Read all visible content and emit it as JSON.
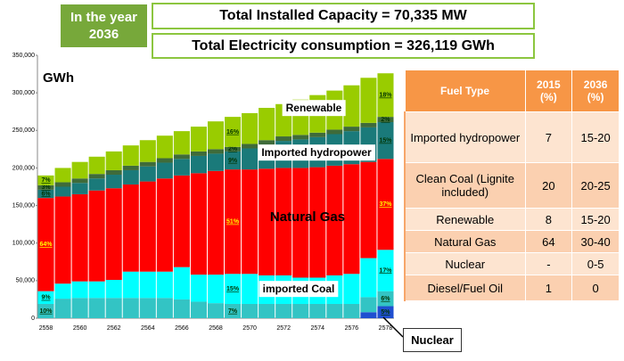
{
  "header": {
    "year_box": "In the year 2036",
    "capacity": "Total Installed Capacity = 70,335 MW",
    "consumption": "Total Electricity consumption = 326,119 GWh"
  },
  "chart_data": {
    "type": "stacked_bar",
    "unit_label": "GWh",
    "categories": [
      "2558",
      null,
      "2560",
      null,
      "2562",
      null,
      "2564",
      null,
      "2566",
      null,
      "2568",
      null,
      "2570",
      null,
      "2572",
      null,
      "2574",
      null,
      "2576",
      null,
      "2578"
    ],
    "ylim": [
      0,
      350000
    ],
    "yticks": [
      0,
      {
        "value": 50000,
        "label": "50,000"
      },
      {
        "value": 100000,
        "label": "100,000"
      },
      {
        "value": 150000,
        "label": "150,000"
      },
      {
        "value": 200000,
        "label": "200,000"
      },
      {
        "value": 250000,
        "label": "250,000"
      },
      {
        "value": 300000,
        "label": "300,000"
      },
      {
        "value": 350000,
        "label": "350,000"
      }
    ],
    "series": [
      {
        "name": "Nuclear",
        "color": "#1f4fd0",
        "values": [
          0,
          0,
          0,
          0,
          0,
          0,
          0,
          0,
          0,
          0,
          0,
          0,
          0,
          0,
          0,
          0,
          0,
          0,
          0,
          8000,
          16000
        ],
        "share_labels": [
          null,
          null,
          null,
          null,
          null,
          null,
          null,
          null,
          null,
          null,
          null,
          null,
          null,
          null,
          null,
          null,
          null,
          null,
          null,
          null,
          "5%"
        ]
      },
      {
        "color": "#33c4c4",
        "values": [
          19000,
          26000,
          27000,
          27000,
          27000,
          27000,
          27000,
          27000,
          25000,
          22000,
          20000,
          19000,
          19000,
          19000,
          19000,
          19000,
          19000,
          19000,
          19000,
          20000,
          20000
        ],
        "share_labels": [
          "10%",
          null,
          null,
          null,
          null,
          null,
          null,
          null,
          null,
          null,
          null,
          "7%",
          null,
          null,
          null,
          null,
          null,
          null,
          null,
          null,
          "6%"
        ]
      },
      {
        "name": "imported Coal",
        "color": "#00ffff",
        "values": [
          17000,
          20000,
          22000,
          22000,
          24000,
          35000,
          35000,
          35000,
          43000,
          36000,
          38000,
          40000,
          40000,
          38000,
          38000,
          35000,
          35000,
          38000,
          40000,
          52000,
          55000
        ],
        "share_labels": [
          "9%",
          null,
          null,
          null,
          null,
          null,
          null,
          null,
          null,
          null,
          null,
          "15%",
          null,
          null,
          null,
          null,
          null,
          null,
          null,
          null,
          "17%"
        ]
      },
      {
        "name": "Natural Gas",
        "color": "#ff0000",
        "values": [
          124000,
          116000,
          116000,
          121000,
          122000,
          116000,
          120000,
          124000,
          122000,
          135000,
          138000,
          139000,
          139000,
          142000,
          143000,
          146000,
          147000,
          146000,
          146000,
          128000,
          121000
        ],
        "share_labels": [
          "64%",
          null,
          null,
          null,
          null,
          null,
          null,
          null,
          null,
          null,
          null,
          "51%",
          null,
          null,
          null,
          null,
          null,
          null,
          null,
          null,
          "37%"
        ]
      },
      {
        "name": "Imported hydropower",
        "color": "#1a7a7a",
        "values": [
          11000,
          13000,
          15000,
          16000,
          18000,
          19000,
          20000,
          21000,
          22000,
          23000,
          23000,
          24000,
          28000,
          32000,
          36000,
          38000,
          40000,
          42000,
          44000,
          46000,
          49000
        ],
        "share_labels": [
          "6%",
          null,
          null,
          null,
          null,
          null,
          null,
          null,
          null,
          null,
          null,
          "9%",
          null,
          null,
          null,
          null,
          null,
          null,
          null,
          null,
          "15%"
        ]
      },
      {
        "color": "#3f6b3a",
        "values": [
          6000,
          6000,
          6000,
          6000,
          6000,
          6000,
          6000,
          6000,
          6000,
          6000,
          6000,
          6000,
          6000,
          6000,
          6000,
          6000,
          6000,
          6000,
          6000,
          6000,
          7000
        ],
        "share_labels": [
          "3%",
          null,
          null,
          null,
          null,
          null,
          null,
          null,
          null,
          null,
          null,
          "2%",
          null,
          null,
          null,
          null,
          null,
          null,
          null,
          null,
          "2%"
        ]
      },
      {
        "name": "Renewable",
        "color": "#99cc00",
        "values": [
          13000,
          19000,
          22000,
          23000,
          25000,
          27000,
          29000,
          30000,
          31000,
          33000,
          37000,
          40000,
          41000,
          43000,
          43000,
          47000,
          50000,
          52000,
          55000,
          60000,
          58000
        ],
        "share_labels": [
          "7%",
          null,
          null,
          null,
          null,
          null,
          null,
          null,
          null,
          null,
          null,
          "16%",
          null,
          null,
          null,
          null,
          null,
          null,
          null,
          null,
          "18%"
        ]
      }
    ]
  },
  "table": {
    "header": [
      "Fuel Type",
      "2015 (%)",
      "2036 (%)"
    ],
    "rows": [
      [
        "Imported hydropower",
        "7",
        "15-20"
      ],
      [
        "Clean Coal (Lignite included)",
        "20",
        "20-25"
      ],
      [
        "Renewable",
        "8",
        "15-20"
      ],
      [
        "Natural Gas",
        "64",
        "30-40"
      ],
      [
        "Nuclear",
        "-",
        "0-5"
      ],
      [
        "Diesel/Fuel Oil",
        "1",
        "0"
      ]
    ]
  }
}
